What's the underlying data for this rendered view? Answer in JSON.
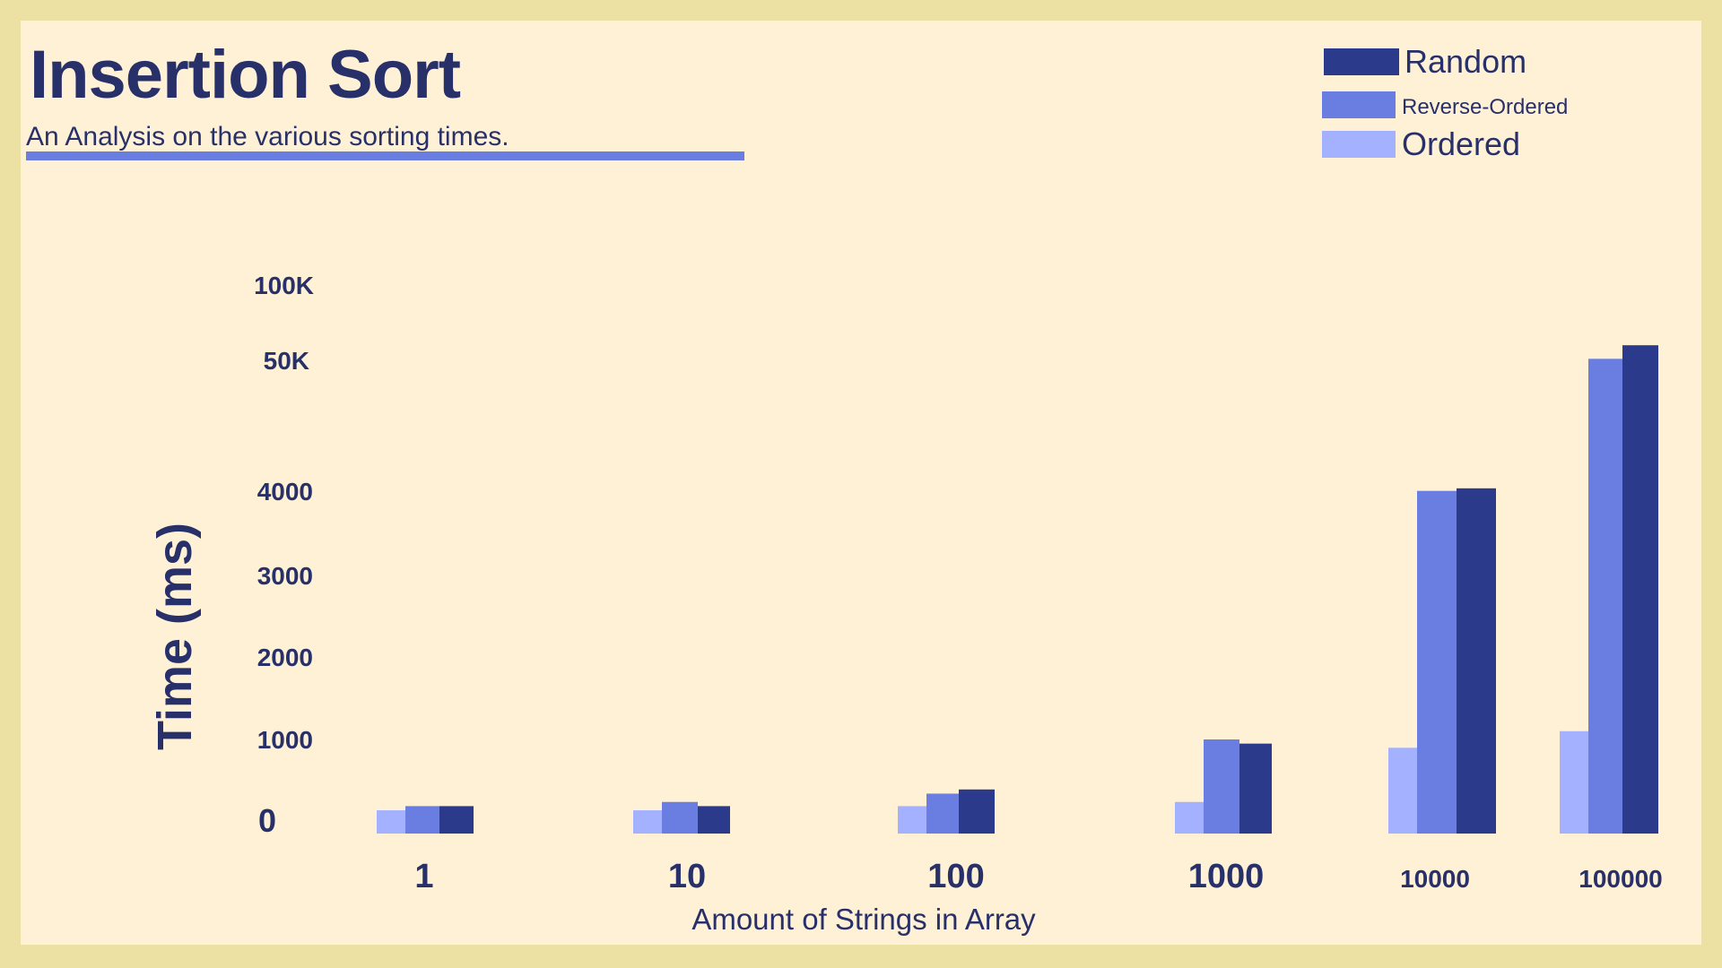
{
  "header": {
    "title": "Insertion Sort",
    "subtitle": "An Analysis on the various sorting times."
  },
  "colors": {
    "background_frame": "#ece0a3",
    "card": "#fff1d6",
    "text": "#28306a",
    "accent_rule": "#6a7de0"
  },
  "chart_data": {
    "type": "bar",
    "title": "Insertion Sort",
    "subtitle": "An Analysis on the various sorting times.",
    "xlabel": "Amount of Strings in Array",
    "ylabel": "Time (ms)",
    "categories": [
      "1",
      "10",
      "100",
      "1000",
      "10000",
      "100000"
    ],
    "y_ticks": [
      "0",
      "1000",
      "2000",
      "3000",
      "4000",
      "50K",
      "100K"
    ],
    "y_tick_values": [
      0,
      1000,
      2000,
      3000,
      4000,
      50000,
      100000
    ],
    "y_scale_note": "broken axis: linear 0–4000, then 50K and 100K",
    "series": [
      {
        "name": "Ordered",
        "color": "#a3b1ff",
        "values": [
          150,
          150,
          200,
          250,
          900,
          1100
        ]
      },
      {
        "name": "Reverse-Ordered",
        "color": "#6a7de0",
        "values": [
          200,
          250,
          350,
          1000,
          4100,
          51000
        ]
      },
      {
        "name": "Random",
        "color": "#2b3a8a",
        "values": [
          200,
          200,
          400,
          950,
          5000,
          60000
        ]
      }
    ],
    "legend": {
      "placement": "top-right",
      "order": [
        "Random",
        "Reverse-Ordered",
        "Ordered"
      ]
    },
    "grid": false
  }
}
